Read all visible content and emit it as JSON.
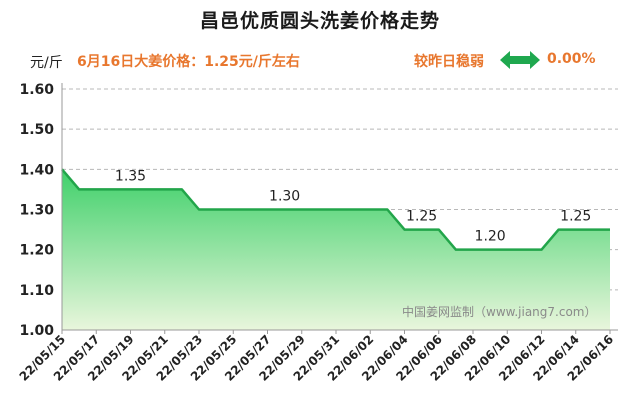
{
  "title": "昌邑优质圆头洗姜价格走势",
  "unit_label": "元/斤",
  "price_note": "6月16日大姜价格：1.25元/斤左右",
  "compare_label": "较昨日稳弱",
  "compare_icon": "double-arrow-icon",
  "compare_value": "0.00%",
  "watermark": "中国姜网监制（www.jiang7.com）",
  "colors": {
    "line": "#22a54a",
    "fill_top": "#3fd06a",
    "fill_bottom": "#e9f6dc",
    "note": "#e8772e",
    "icon": "#1fa84f"
  },
  "chart_data": {
    "type": "area",
    "x": [
      "22/05/15",
      "22/05/16",
      "22/05/17",
      "22/05/18",
      "22/05/19",
      "22/05/20",
      "22/05/21",
      "22/05/22",
      "22/05/23",
      "22/05/24",
      "22/05/25",
      "22/05/26",
      "22/05/27",
      "22/05/28",
      "22/05/29",
      "22/05/30",
      "22/05/31",
      "22/06/01",
      "22/06/02",
      "22/06/03",
      "22/06/04",
      "22/06/05",
      "22/06/06",
      "22/06/07",
      "22/06/08",
      "22/06/09",
      "22/06/10",
      "22/06/11",
      "22/06/12",
      "22/06/13",
      "22/06/14",
      "22/06/15",
      "22/06/16"
    ],
    "values": [
      1.4,
      1.35,
      1.35,
      1.35,
      1.35,
      1.35,
      1.35,
      1.35,
      1.3,
      1.3,
      1.3,
      1.3,
      1.3,
      1.3,
      1.3,
      1.3,
      1.3,
      1.3,
      1.3,
      1.3,
      1.25,
      1.25,
      1.25,
      1.2,
      1.2,
      1.2,
      1.2,
      1.2,
      1.2,
      1.25,
      1.25,
      1.25,
      1.25
    ],
    "xtick_labels": [
      "22/05/15",
      "22/05/17",
      "22/05/19",
      "22/05/21",
      "22/05/23",
      "22/05/25",
      "22/05/27",
      "22/05/29",
      "22/05/31",
      "22/06/02",
      "22/06/04",
      "22/06/06",
      "22/06/08",
      "22/06/10",
      "22/06/12",
      "22/06/14",
      "22/06/16"
    ],
    "yticks": [
      "1.00",
      "1.10",
      "1.20",
      "1.30",
      "1.40",
      "1.50",
      "1.60"
    ],
    "ylim": [
      1.0,
      1.6
    ],
    "grid": "horizontal-dashed",
    "data_labels": [
      {
        "x": "22/05/19",
        "text": "1.35"
      },
      {
        "x": "22/05/28",
        "text": "1.30"
      },
      {
        "x": "22/06/05",
        "text": "1.25"
      },
      {
        "x": "22/06/09",
        "text": "1.20"
      },
      {
        "x": "22/06/14",
        "text": "1.25"
      }
    ]
  }
}
